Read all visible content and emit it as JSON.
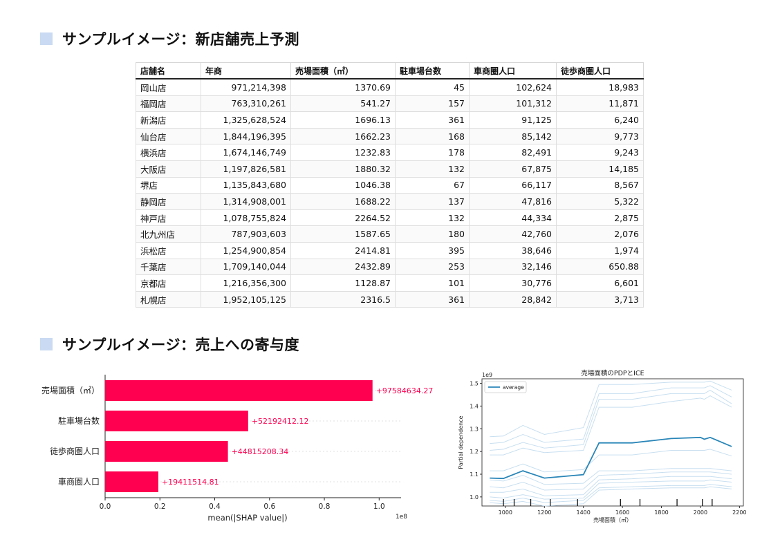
{
  "sections": {
    "forecast_title": "サンプルイメージ：新店舗売上予測",
    "contribution_title": "サンプルイメージ：売上への寄与度"
  },
  "table": {
    "columns": [
      "店舗名",
      "年商",
      "売場面積（㎡）",
      "駐車場台数",
      "車商圏人口",
      "徒歩商圏人口"
    ],
    "rows": [
      [
        "岡山店",
        "971,214,398",
        "1370.69",
        "45",
        "102,624",
        "18,983"
      ],
      [
        "福岡店",
        "763,310,261",
        "541.27",
        "157",
        "101,312",
        "11,871"
      ],
      [
        "新潟店",
        "1,325,628,524",
        "1696.13",
        "361",
        "91,125",
        "6,240"
      ],
      [
        "仙台店",
        "1,844,196,395",
        "1662.23",
        "168",
        "85,142",
        "9,773"
      ],
      [
        "横浜店",
        "1,674,146,749",
        "1232.83",
        "178",
        "82,491",
        "9,243"
      ],
      [
        "大阪店",
        "1,197,826,581",
        "1880.32",
        "132",
        "67,875",
        "14,185"
      ],
      [
        "堺店",
        "1,135,843,680",
        "1046.38",
        "67",
        "66,117",
        "8,567"
      ],
      [
        "静岡店",
        "1,314,908,001",
        "1688.22",
        "137",
        "47,816",
        "5,322"
      ],
      [
        "神戸店",
        "1,078,755,824",
        "2264.52",
        "132",
        "44,334",
        "2,875"
      ],
      [
        "北九州店",
        "787,903,603",
        "1587.65",
        "180",
        "42,760",
        "2,076"
      ],
      [
        "浜松店",
        "1,254,900,854",
        "2414.81",
        "395",
        "38,646",
        "1,974"
      ],
      [
        "千葉店",
        "1,709,140,044",
        "2432.89",
        "253",
        "32,146",
        "650.88"
      ],
      [
        "京都店",
        "1,216,356,300",
        "1128.87",
        "101",
        "30,776",
        "6,601"
      ],
      [
        "札幌店",
        "1,952,105,125",
        "2316.5",
        "361",
        "28,842",
        "3,713"
      ]
    ]
  },
  "chart_data": [
    {
      "type": "bar",
      "orientation": "horizontal",
      "categories": [
        "売場面積（㎡）",
        "駐車場台数",
        "徒歩商圏人口",
        "車商圏人口"
      ],
      "values": [
        97584634.27,
        52192412.12,
        44815208.34,
        19411514.81
      ],
      "value_labels": [
        "+97584634.27",
        "+52192412.12",
        "+44815208.34",
        "+19411514.81"
      ],
      "xlabel": "mean(|SHAP value|)",
      "xscale_label": "1e8",
      "xticks": [
        "0.0",
        "0.2",
        "0.4",
        "0.6",
        "0.8",
        "1.0"
      ],
      "xlim": [
        0,
        108000000
      ],
      "bar_color": "#ff0051",
      "label_color": "#ff0051"
    },
    {
      "type": "line",
      "title": "売場面積のPDPとICE",
      "xlabel": "売場面積（㎡）",
      "ylabel": "Partial dependence",
      "yscale_label": "1e9",
      "xlim": [
        880,
        2220
      ],
      "ylim": [
        0.96,
        1.52
      ],
      "xticks": [
        1000,
        1200,
        1400,
        1600,
        1800,
        2000,
        2200
      ],
      "yticks": [
        "1.0",
        "1.1",
        "1.2",
        "1.3",
        "1.4",
        "1.5"
      ],
      "legend": "average",
      "legend_position": "top-left",
      "average_color": "#2a86b8",
      "ice_color": "#c8dff0",
      "x": [
        920,
        990,
        1090,
        1200,
        1400,
        1480,
        1650,
        1850,
        2000,
        2020,
        2050,
        2160
      ],
      "series": [
        {
          "name": "average",
          "values": [
            1.083,
            1.081,
            1.115,
            1.083,
            1.098,
            1.238,
            1.238,
            1.257,
            1.262,
            1.254,
            1.262,
            1.222
          ]
        }
      ],
      "ice": [
        [
          1.265,
          1.268,
          1.315,
          1.275,
          1.305,
          1.495,
          1.495,
          1.505,
          1.505,
          1.505,
          1.51,
          1.47
        ],
        [
          1.235,
          1.24,
          1.275,
          1.24,
          1.255,
          1.455,
          1.455,
          1.48,
          1.48,
          1.48,
          1.49,
          1.44
        ],
        [
          1.205,
          1.21,
          1.24,
          1.215,
          1.23,
          1.43,
          1.43,
          1.455,
          1.455,
          1.455,
          1.47,
          1.41
        ],
        [
          1.185,
          1.185,
          1.215,
          1.195,
          1.205,
          1.395,
          1.395,
          1.42,
          1.435,
          1.43,
          1.445,
          1.395
        ],
        [
          1.115,
          1.115,
          1.145,
          1.11,
          1.12,
          1.185,
          1.185,
          1.205,
          1.205,
          1.205,
          1.21,
          1.18
        ],
        [
          1.075,
          1.07,
          1.095,
          1.055,
          1.06,
          1.115,
          1.115,
          1.125,
          1.125,
          1.125,
          1.125,
          1.115
        ],
        [
          1.045,
          1.04,
          1.065,
          1.03,
          1.035,
          1.095,
          1.1,
          1.11,
          1.11,
          1.11,
          1.11,
          1.1
        ],
        [
          1.02,
          1.02,
          1.035,
          1.005,
          1.01,
          1.075,
          1.08,
          1.09,
          1.09,
          1.09,
          1.09,
          1.08
        ],
        [
          1.0,
          0.995,
          1.01,
          0.99,
          0.995,
          1.06,
          1.065,
          1.07,
          1.07,
          1.07,
          1.075,
          1.065
        ],
        [
          0.985,
          0.98,
          0.995,
          0.975,
          0.985,
          1.04,
          1.045,
          1.05,
          1.05,
          1.05,
          1.055,
          1.045
        ],
        [
          0.975,
          0.97,
          0.98,
          0.96,
          0.97,
          1.03,
          1.035,
          1.04,
          1.04,
          1.04,
          1.045,
          1.035
        ]
      ],
      "rug": [
        990,
        1045,
        1130,
        1230,
        1370,
        1590,
        1690,
        1880,
        2010,
        2060
      ]
    }
  ]
}
